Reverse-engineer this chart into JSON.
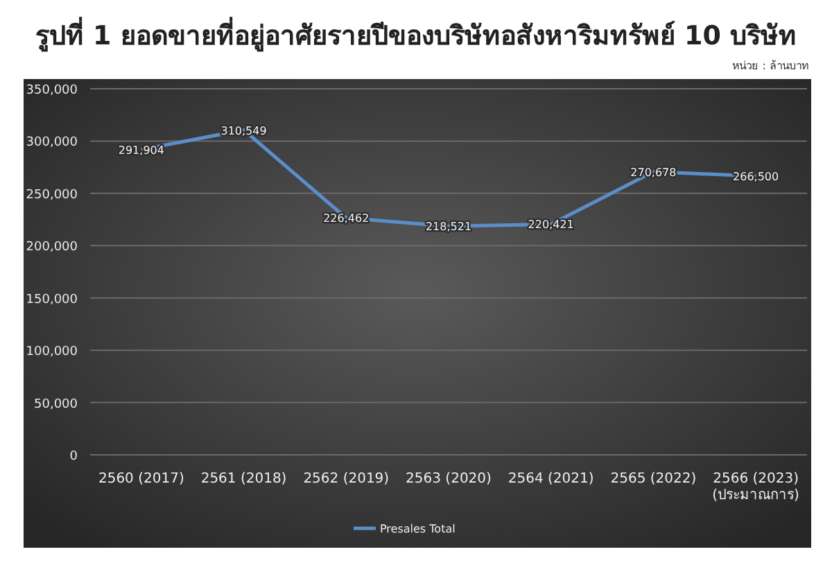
{
  "chart_data": {
    "type": "line",
    "title": "รูปที่ 1 ยอดขายที่อยู่อาศัยรายปีของบริษัทอสังหาริมทรัพย์ 10 บริษัท",
    "annotations": [
      "หน่วย : ล้านบาท"
    ],
    "categories": [
      "2560 (2017)",
      "2561 (2018)",
      "2562 (2019)",
      "2563 (2020)",
      "2564 (2021)",
      "2565 (2022)",
      "2566 (2023)\n(ประมาณการ)"
    ],
    "series": [
      {
        "name": "Presales Total",
        "color": "#5b8ec9",
        "values": [
          291904,
          310549,
          226462,
          218521,
          220421,
          270678,
          266500
        ],
        "value_labels": [
          "291,904",
          "310,549",
          "226,462",
          "218,521",
          "220,421",
          "270,678",
          "266,500"
        ]
      }
    ],
    "ylim": [
      0,
      350000
    ],
    "yticks": [
      {
        "value": 0,
        "label": "0"
      },
      {
        "value": 50000,
        "label": "50,000"
      },
      {
        "value": 100000,
        "label": "100,000"
      },
      {
        "value": 150000,
        "label": "150,000"
      },
      {
        "value": 200000,
        "label": "200,000"
      },
      {
        "value": 250000,
        "label": "250,000"
      },
      {
        "value": 300000,
        "label": "300,000"
      },
      {
        "value": 350000,
        "label": "350,000"
      }
    ],
    "grid": "y",
    "legend": "bottom",
    "marker": "none",
    "line_style": "solid"
  }
}
